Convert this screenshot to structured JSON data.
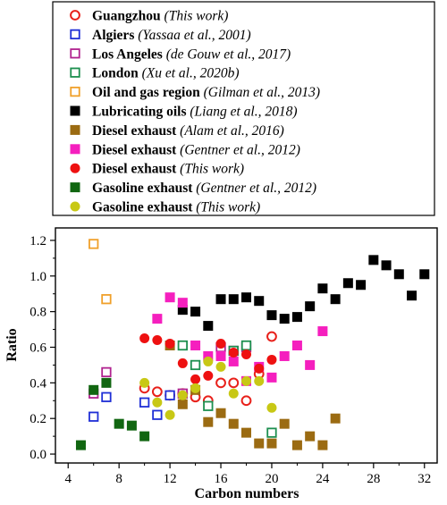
{
  "chart_data": {
    "type": "scatter",
    "xlabel": "Carbon numbers",
    "ylabel": "Ratio",
    "xlim": [
      3,
      33
    ],
    "ylim": [
      -0.05,
      1.27
    ],
    "xticks": [
      "4",
      "8",
      "12",
      "16",
      "20",
      "24",
      "28",
      "32"
    ],
    "yticks": [
      "0.0",
      "0.2",
      "0.4",
      "0.6",
      "0.8",
      "1.0",
      "1.2"
    ],
    "grid": false,
    "legend_position": "top (above plot, boxed)",
    "series": [
      {
        "name": "Guangzhou",
        "cite": "(This work)",
        "marker": "circle",
        "filled": false,
        "color": "#e8201a",
        "x": [
          10,
          11,
          12,
          13,
          14,
          15,
          16,
          17,
          18,
          19,
          20
        ],
        "y": [
          0.37,
          0.35,
          0.33,
          0.34,
          0.32,
          0.3,
          0.4,
          0.4,
          0.3,
          0.45,
          0.66
        ]
      },
      {
        "name": "Algiers",
        "cite": "(Yassaa et al., 2001)",
        "marker": "square",
        "filled": false,
        "color": "#1f2fd6",
        "x": [
          6,
          7,
          10,
          11,
          12
        ],
        "y": [
          0.21,
          0.32,
          0.29,
          0.22,
          0.33
        ]
      },
      {
        "name": "Los Angeles",
        "cite": "(de Gouw et al., 2017)",
        "marker": "square",
        "filled": false,
        "color": "#b0238f",
        "x": [
          6,
          7,
          13,
          16,
          17,
          18
        ],
        "y": [
          0.34,
          0.46,
          0.34,
          0.6,
          0.58,
          0.6
        ]
      },
      {
        "name": "London",
        "cite": "(Xu et al., 2020b)",
        "marker": "square",
        "filled": false,
        "color": "#1d8f4f",
        "x": [
          13,
          14,
          15,
          17,
          18,
          20
        ],
        "y": [
          0.61,
          0.5,
          0.27,
          0.58,
          0.61,
          0.12
        ]
      },
      {
        "name": "Oil and gas region",
        "cite": "(Gilman et al., 2013)",
        "marker": "square",
        "filled": false,
        "color": "#f0a02a",
        "x": [
          6,
          7
        ],
        "y": [
          1.18,
          0.87
        ]
      },
      {
        "name": "Lubricating oils",
        "cite": "(Liang et al., 2018)",
        "marker": "square",
        "filled": true,
        "color": "#000000",
        "x": [
          13,
          14,
          15,
          16,
          17,
          18,
          19,
          20,
          21,
          22,
          23,
          24,
          25,
          26,
          27,
          28,
          29,
          30,
          31,
          32
        ],
        "y": [
          0.81,
          0.8,
          0.72,
          0.87,
          0.87,
          0.88,
          0.86,
          0.78,
          0.76,
          0.77,
          0.83,
          0.93,
          0.87,
          0.96,
          0.95,
          1.09,
          1.06,
          1.01,
          0.89,
          1.01
        ]
      },
      {
        "name": "Diesel exhaust",
        "cite": "(Alam et al., 2016)",
        "marker": "square",
        "filled": true,
        "color": "#9b6b12",
        "x": [
          12,
          13,
          14,
          15,
          16,
          17,
          18,
          19,
          20,
          21,
          22,
          23,
          24,
          25
        ],
        "y": [
          0.61,
          0.28,
          0.36,
          0.18,
          0.23,
          0.17,
          0.12,
          0.06,
          0.06,
          0.17,
          0.05,
          0.1,
          0.05,
          0.2
        ]
      },
      {
        "name": "Diesel exhaust",
        "cite": "(Gentner et al., 2012)",
        "marker": "square",
        "filled": true,
        "color": "#f51fbe",
        "x": [
          11,
          12,
          13,
          14,
          15,
          16,
          17,
          18,
          19,
          20,
          21,
          22,
          23,
          24
        ],
        "y": [
          0.76,
          0.88,
          0.85,
          0.61,
          0.55,
          0.55,
          0.52,
          0.41,
          0.49,
          0.43,
          0.55,
          0.61,
          0.5,
          0.69
        ]
      },
      {
        "name": "Diesel exhaust",
        "cite": "(This work)",
        "marker": "circle",
        "filled": true,
        "color": "#ee1111",
        "x": [
          10,
          11,
          12,
          13,
          14,
          15,
          16,
          17,
          18,
          19,
          20
        ],
        "y": [
          0.65,
          0.64,
          0.62,
          0.51,
          0.42,
          0.44,
          0.62,
          0.57,
          0.56,
          0.48,
          0.53
        ]
      },
      {
        "name": "Gasoline exhaust",
        "cite": "(Gentner et al., 2012)",
        "marker": "square",
        "filled": true,
        "color": "#116611",
        "x": [
          5,
          6,
          7,
          8,
          9,
          10
        ],
        "y": [
          0.05,
          0.36,
          0.4,
          0.17,
          0.16,
          0.1
        ]
      },
      {
        "name": "Gasoline exhaust",
        "cite": "(This work)",
        "marker": "circle",
        "filled": true,
        "color": "#c8c815",
        "x": [
          10,
          11,
          12,
          13,
          14,
          15,
          16,
          17,
          18,
          19,
          20
        ],
        "y": [
          0.4,
          0.29,
          0.22,
          0.33,
          0.37,
          0.52,
          0.49,
          0.34,
          0.41,
          0.41,
          0.26
        ]
      }
    ]
  }
}
